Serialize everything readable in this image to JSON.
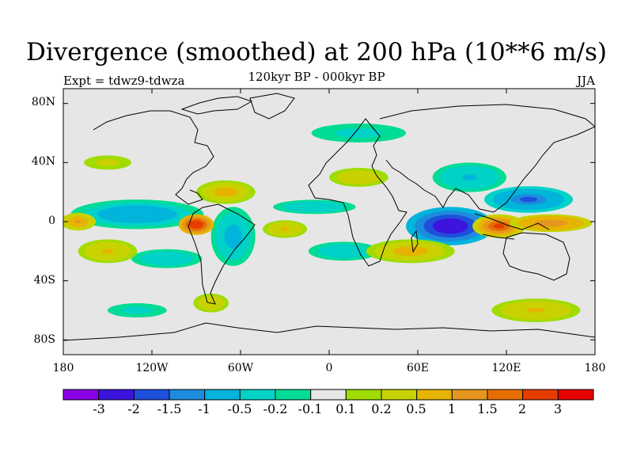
{
  "title": "Divergence (smoothed) at 200 hPa (10**6 m/s)",
  "subtitle": "120kyr BP - 000kyr BP",
  "experiment": "Expt = tdwz9-tdwza",
  "season": "JJA",
  "lat_labels": [
    "80N",
    "40N",
    "0",
    "40S",
    "80S"
  ],
  "lon_labels": [
    "180",
    "120W",
    "60W",
    "0",
    "60E",
    "120E",
    "180"
  ],
  "colorbar": {
    "labels": [
      "-3",
      "-2",
      "-1.5",
      "-1",
      "-0.5",
      "-0.2",
      "-0.1",
      "0.1",
      "0.2",
      "0.5",
      "1",
      "1.5",
      "2",
      "3"
    ],
    "colors": [
      "#8a00e6",
      "#3c14dc",
      "#1e50dc",
      "#1e8cdc",
      "#00b4dc",
      "#00d2c8",
      "#00dc96",
      "#e6e6e6",
      "#a0dc00",
      "#c8d200",
      "#e6b400",
      "#e6961e",
      "#e66e00",
      "#e63c00",
      "#e60000"
    ]
  },
  "chart_data": {
    "type": "heatmap",
    "variable": "Divergence (smoothed) at 200 hPa",
    "units": "10**6 m/s",
    "x_range": [
      -180,
      180
    ],
    "y_range": [
      -90,
      90
    ],
    "blobs": [
      {
        "lon": 82,
        "lat": -3,
        "rlon": 30,
        "rlat": 13,
        "v": -2.6
      },
      {
        "lon": 135,
        "lat": 15,
        "rlon": 30,
        "rlat": 9,
        "v": -1.6
      },
      {
        "lon": -130,
        "lat": 5,
        "rlon": 45,
        "rlat": 10,
        "v": -1.0
      },
      {
        "lon": -65,
        "lat": -10,
        "rlon": 15,
        "rlat": 20,
        "v": -0.8
      },
      {
        "lon": 95,
        "lat": 30,
        "rlon": 25,
        "rlat": 10,
        "v": -0.6
      },
      {
        "lon": -10,
        "lat": 10,
        "rlon": 35,
        "rlat": 6,
        "v": -0.5
      },
      {
        "lon": 10,
        "lat": -20,
        "rlon": 30,
        "rlat": 8,
        "v": -0.4
      },
      {
        "lon": -110,
        "lat": -25,
        "rlon": 30,
        "rlat": 8,
        "v": -0.5
      },
      {
        "lon": -130,
        "lat": -60,
        "rlon": 25,
        "rlat": 6,
        "v": -0.3
      },
      {
        "lon": 20,
        "lat": 60,
        "rlon": 40,
        "rlat": 8,
        "v": -0.3
      },
      {
        "lon": -90,
        "lat": -2,
        "rlon": 12,
        "rlat": 7,
        "v": 2.6
      },
      {
        "lon": 115,
        "lat": -3,
        "rlon": 18,
        "rlat": 8,
        "v": 2.0
      },
      {
        "lon": 150,
        "lat": -1,
        "rlon": 28,
        "rlat": 6,
        "v": 1.3
      },
      {
        "lon": -170,
        "lat": 0,
        "rlon": 12,
        "rlat": 6,
        "v": 1.2
      },
      {
        "lon": 55,
        "lat": -20,
        "rlon": 30,
        "rlat": 8,
        "v": 0.8
      },
      {
        "lon": -70,
        "lat": 20,
        "rlon": 20,
        "rlat": 8,
        "v": 0.7
      },
      {
        "lon": -30,
        "lat": -5,
        "rlon": 15,
        "rlat": 6,
        "v": 0.6
      },
      {
        "lon": -150,
        "lat": -20,
        "rlon": 20,
        "rlat": 8,
        "v": 0.6
      },
      {
        "lon": 140,
        "lat": -60,
        "rlon": 30,
        "rlat": 8,
        "v": 0.5
      },
      {
        "lon": -80,
        "lat": -55,
        "rlon": 15,
        "rlat": 8,
        "v": 0.4
      },
      {
        "lon": 20,
        "lat": 30,
        "rlon": 25,
        "rlat": 8,
        "v": 0.4
      },
      {
        "lon": -150,
        "lat": 40,
        "rlon": 20,
        "rlat": 6,
        "v": 0.3
      }
    ]
  }
}
